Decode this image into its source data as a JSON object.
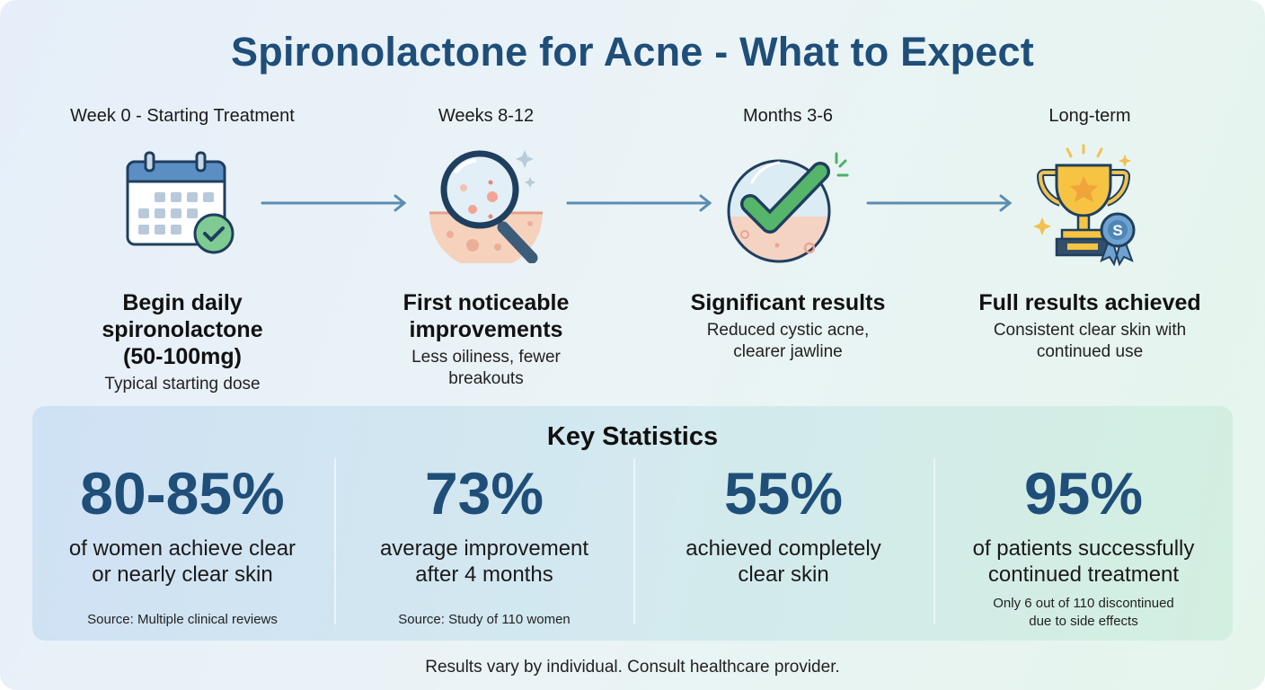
{
  "title": "Spironolactone for Acne - What to Expect",
  "colors": {
    "title": "#1f4e79",
    "arrow": "#5b8db0",
    "green": "#4caf6a",
    "gold": "#f2b632"
  },
  "steps": [
    {
      "label": "Week 0 - Starting Treatment",
      "icon": "calendar-check-icon",
      "heading_lines": [
        "Begin daily",
        "spironolactone",
        "(50-100mg)"
      ],
      "desc_lines": [
        "Typical starting dose"
      ]
    },
    {
      "label": "Weeks 8-12",
      "icon": "magnifier-skin-icon",
      "heading_lines": [
        "First noticeable",
        "improvements"
      ],
      "desc_lines": [
        "Less oiliness, fewer",
        "breakouts"
      ]
    },
    {
      "label": "Months 3-6",
      "icon": "checkmark-skin-icon",
      "heading_lines": [
        "Significant results"
      ],
      "desc_lines": [
        "Reduced cystic acne,",
        "clearer jawline"
      ]
    },
    {
      "label": "Long-term",
      "icon": "trophy-icon",
      "badge_letter": "S",
      "heading_lines": [
        "Full results achieved"
      ],
      "desc_lines": [
        "Consistent clear skin with",
        "continued use"
      ]
    }
  ],
  "stats": {
    "title": "Key Statistics",
    "items": [
      {
        "value": "80-85%",
        "desc_lines": [
          "of women achieve clear",
          "or nearly clear skin"
        ],
        "note_lines": [
          "Source: Multiple clinical reviews"
        ]
      },
      {
        "value": "73%",
        "desc_lines": [
          "average improvement",
          "after 4 months"
        ],
        "note_lines": [
          "Source: Study of 110 women"
        ]
      },
      {
        "value": "55%",
        "desc_lines": [
          "achieved completely",
          "clear skin"
        ],
        "note_lines": []
      },
      {
        "value": "95%",
        "desc_lines": [
          "of patients successfully",
          "continued treatment"
        ],
        "note_lines": [
          "Only 6 out of 110 discontinued",
          "due to side effects"
        ]
      }
    ]
  },
  "footer": "Results vary by individual. Consult healthcare provider."
}
